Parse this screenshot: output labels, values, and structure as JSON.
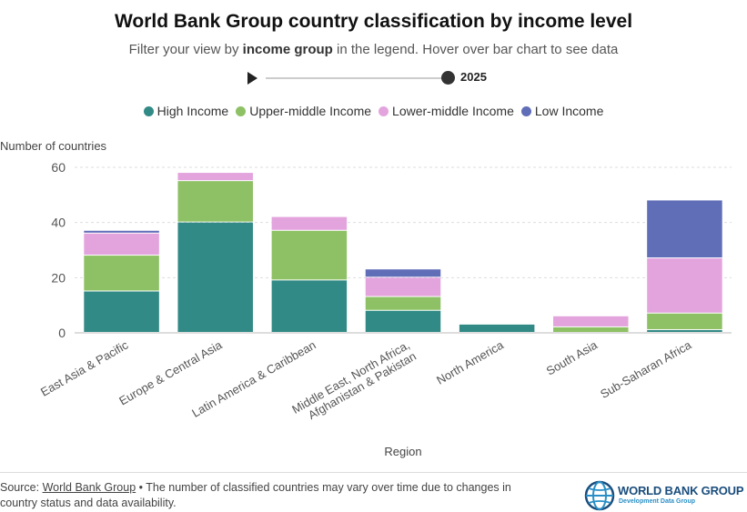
{
  "header": {
    "title": "World Bank Group country classification by income level",
    "subtitle_pre": "Filter your view by ",
    "subtitle_bold": "income group",
    "subtitle_post": " in the legend. Hover over bar chart to see data"
  },
  "timeline": {
    "year": "2025",
    "position": 1.0
  },
  "legend": [
    {
      "label": "High Income",
      "color": "#318a86"
    },
    {
      "label": "Upper-middle Income",
      "color": "#8ec165"
    },
    {
      "label": "Lower-middle Income",
      "color": "#e3a4de"
    },
    {
      "label": "Low Income",
      "color": "#606db7"
    }
  ],
  "chart_data": {
    "type": "bar",
    "stacked": true,
    "ylabel": "Number of countries",
    "xlabel": "Region",
    "ylim": [
      0,
      60
    ],
    "yticks": [
      0,
      20,
      40,
      60
    ],
    "grid": true,
    "legend_position": "top-center",
    "categories": [
      [
        "East Asia & Pacific"
      ],
      [
        "Europe & Central Asia"
      ],
      [
        "Latin America & Caribbean"
      ],
      [
        "Middle East, North Africa,",
        "Afghanistan & Pakistan"
      ],
      [
        "North America"
      ],
      [
        "South Asia"
      ],
      [
        "Sub-Saharan Africa"
      ]
    ],
    "series": [
      {
        "name": "High Income",
        "color": "#318a86",
        "values": [
          15,
          40,
          19,
          8,
          3,
          0,
          1
        ]
      },
      {
        "name": "Upper-middle Income",
        "color": "#8ec165",
        "values": [
          13,
          15,
          18,
          5,
          0,
          2,
          6
        ]
      },
      {
        "name": "Lower-middle Income",
        "color": "#e3a4de",
        "values": [
          8,
          3,
          5,
          7,
          0,
          4,
          20
        ]
      },
      {
        "name": "Low Income",
        "color": "#606db7",
        "values": [
          1,
          0,
          0,
          3,
          0,
          0,
          21
        ]
      }
    ]
  },
  "footer": {
    "source_label": "Source: ",
    "source_link": "World Bank Group",
    "source_note": " • The number of classified countries may vary over time due to changes in country status and data availability."
  },
  "logo": {
    "name": "WORLD BANK GROUP",
    "sub": "Development Data Group"
  }
}
